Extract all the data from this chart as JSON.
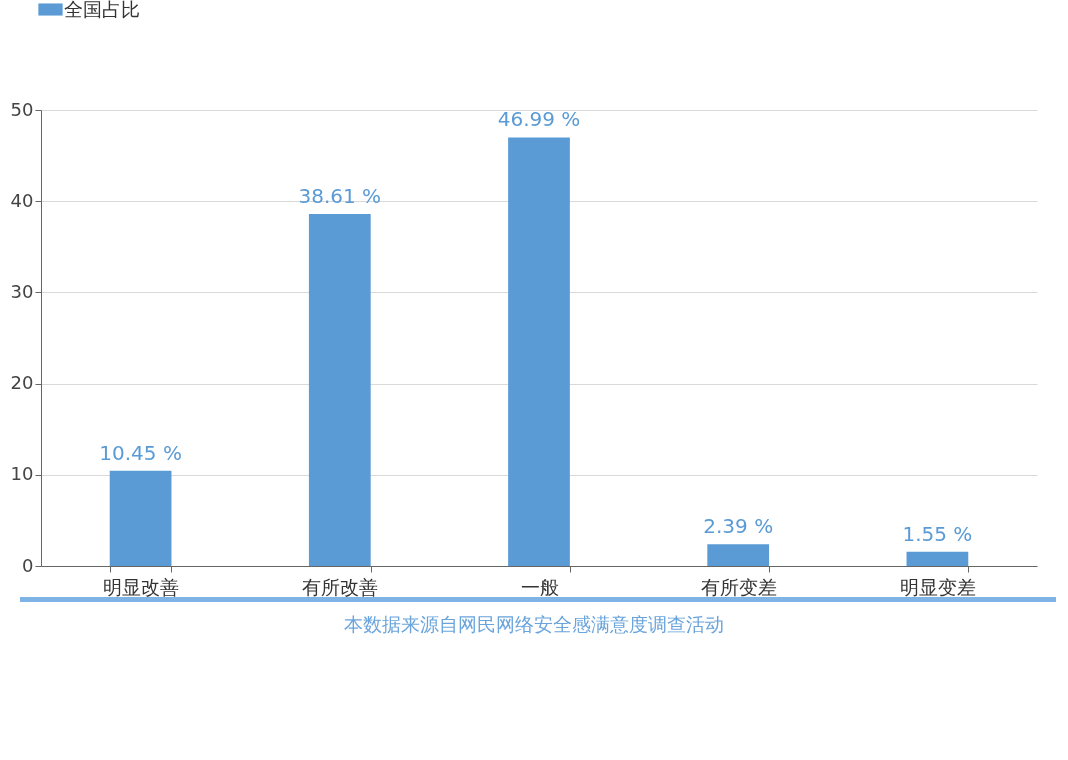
{
  "chart_data": {
    "type": "bar",
    "categories": [
      "明显改善",
      "有所改善",
      "一般",
      "有所变差",
      "明显变差"
    ],
    "series": [
      {
        "name": "全国占比",
        "color": "#5a9bd5",
        "values": [
          10.45,
          38.61,
          46.99,
          2.39,
          1.55
        ]
      }
    ],
    "value_labels": [
      "10.45 %",
      "38.61 %",
      "46.99 %",
      "2.39 %",
      "1.55 %"
    ],
    "ylim": [
      0,
      50
    ],
    "yticks": [
      0,
      10,
      20,
      30,
      40,
      50
    ],
    "grid": "y",
    "legend": "top",
    "annotations": [
      "本数据来源自网民网络安全感满意度调查活动"
    ]
  }
}
